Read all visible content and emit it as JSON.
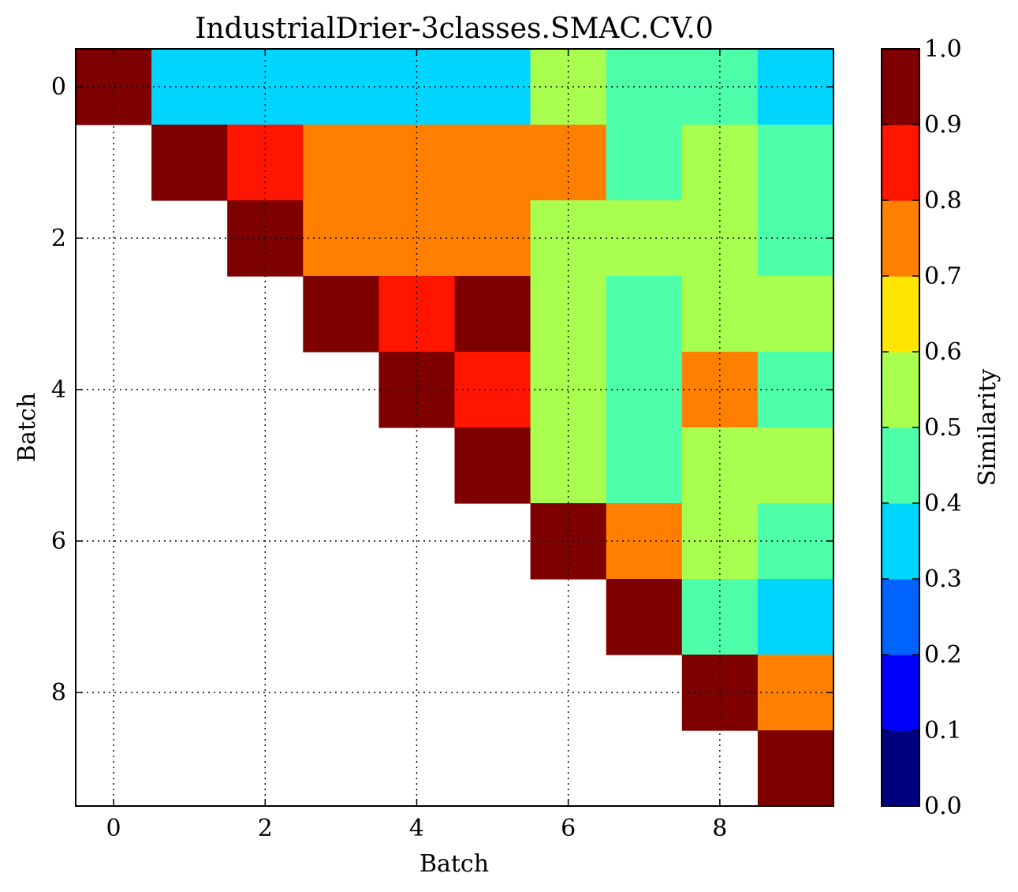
{
  "chart_data": {
    "type": "heatmap",
    "title": "IndustrialDrier-3classes.SMAC.CV.0",
    "xlabel": "Batch",
    "ylabel": "Batch",
    "x_ticks": [
      "0",
      "2",
      "4",
      "6",
      "8"
    ],
    "y_ticks": [
      "0",
      "2",
      "4",
      "6",
      "8"
    ],
    "n_rows": 10,
    "n_cols": 10,
    "grid": true,
    "colorbar": {
      "label": "Similarity",
      "ticks": [
        "0.0",
        "0.1",
        "0.2",
        "0.3",
        "0.4",
        "0.5",
        "0.6",
        "0.7",
        "0.8",
        "0.9",
        "1.0"
      ],
      "range": [
        0,
        1
      ],
      "colors": [
        "#00007f",
        "#0000ff",
        "#0063ff",
        "#00d5ff",
        "#4effa9",
        "#a9ff4e",
        "#ffe500",
        "#ff7f00",
        "#ff1500",
        "#7f0000"
      ]
    },
    "values": [
      [
        0.95,
        0.35,
        0.35,
        0.35,
        0.35,
        0.35,
        0.55,
        0.45,
        0.45,
        0.35
      ],
      [
        null,
        0.95,
        0.85,
        0.75,
        0.75,
        0.75,
        0.75,
        0.45,
        0.55,
        0.45
      ],
      [
        null,
        null,
        0.95,
        0.75,
        0.75,
        0.75,
        0.55,
        0.55,
        0.55,
        0.45
      ],
      [
        null,
        null,
        null,
        0.95,
        0.85,
        0.95,
        0.55,
        0.45,
        0.55,
        0.55
      ],
      [
        null,
        null,
        null,
        null,
        0.95,
        0.85,
        0.55,
        0.45,
        0.75,
        0.45
      ],
      [
        null,
        null,
        null,
        null,
        null,
        0.95,
        0.55,
        0.45,
        0.55,
        0.55
      ],
      [
        null,
        null,
        null,
        null,
        null,
        null,
        0.95,
        0.75,
        0.55,
        0.45
      ],
      [
        null,
        null,
        null,
        null,
        null,
        null,
        null,
        0.95,
        0.45,
        0.35
      ],
      [
        null,
        null,
        null,
        null,
        null,
        null,
        null,
        null,
        0.95,
        0.75
      ],
      [
        null,
        null,
        null,
        null,
        null,
        null,
        null,
        null,
        null,
        0.95
      ]
    ]
  }
}
